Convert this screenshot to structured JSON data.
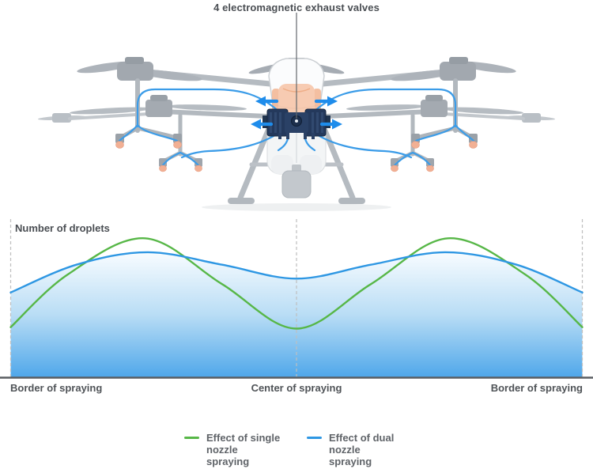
{
  "callout": {
    "label": "4 electromagnetic exhaust valves",
    "points_to": "valve manifold at drone center"
  },
  "drone": {
    "description": "faded agricultural spray drone, front view, spray hoses and valve block highlighted",
    "highlight_colors": {
      "hose_blue": "#3b9ce8",
      "arrow_blue": "#1e8ceb",
      "valve_navy": "#24395c",
      "tank_orange": "#f7c5a8",
      "nozzle_orange": "#f2b094"
    },
    "valve_arrow_count": 4
  },
  "chart_data": {
    "type": "area",
    "title": "",
    "ylabel": "Number of droplets",
    "xlabel": "",
    "x_axis_labels": [
      "Border of spraying",
      "Center of spraying",
      "Border of spraying"
    ],
    "x_unit": "position across spray swath, percent (0 = left border, 50 = center, 100 = right border)",
    "y_unit": "relative droplet count (0-100)",
    "ylim": [
      0,
      105
    ],
    "grid": "three dashed vertical guides: left border, center, right border",
    "legend_position": "bottom",
    "area_gradient": [
      "#f8fcff",
      "#b9ddf5",
      "#4fa7ea"
    ],
    "series": [
      {
        "name": "Effect of single nozzle spraying",
        "color": "#57b747",
        "style": "line",
        "x": [
          0,
          10,
          23.5,
          37,
          50,
          63,
          76.5,
          90,
          100
        ],
        "values": [
          36,
          74,
          100,
          67,
          35,
          67,
          100,
          74,
          36
        ]
      },
      {
        "name": "Effect of dual nozzle spraying",
        "color": "#2e97e3",
        "style": "line with gradient area fill",
        "x": [
          0,
          11.5,
          24,
          37,
          50,
          63,
          76,
          88.5,
          100
        ],
        "values": [
          61,
          81,
          90,
          81,
          71,
          81,
          90,
          81,
          61
        ]
      }
    ]
  },
  "legend": {
    "items": [
      {
        "label": "Effect of single\nnozzle\nspraying",
        "color": "#57b747"
      },
      {
        "label": "Effect of dual\nnozzle\nspraying",
        "color": "#2e97e3"
      }
    ]
  }
}
